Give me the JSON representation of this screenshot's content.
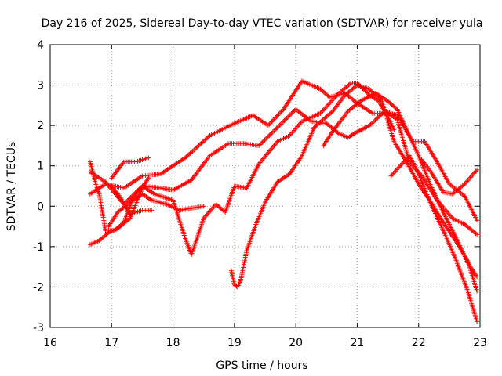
{
  "chart_data": {
    "type": "scatter",
    "title": "Day 216 of 2025, Sidereal Day-to-day VTEC variation (SDTVAR) for receiver yula",
    "xlabel": "GPS time / hours",
    "ylabel": "SDTVAR / TECUs",
    "xlim": [
      16,
      23
    ],
    "ylim": [
      -3,
      4
    ],
    "grid": true,
    "legend": "none",
    "x_ticks": [
      "16",
      "17",
      "18",
      "19",
      "20",
      "21",
      "22",
      "23"
    ],
    "y_ticks": [
      "-3",
      "-2",
      "-1",
      "0",
      "1",
      "2",
      "3",
      "4"
    ],
    "marker": "plus",
    "color": "#ff0000",
    "series": [
      {
        "name": "satellite-track-1",
        "x": [
          16.65,
          16.9,
          17.2,
          17.5,
          17.8,
          18.2,
          18.6,
          19.0,
          19.3,
          19.55,
          19.8,
          20.1,
          20.4,
          20.55,
          20.8,
          21.0,
          21.25,
          21.5,
          21.65,
          21.85,
          22.05,
          22.3,
          22.55,
          22.75,
          22.95
        ],
        "y": [
          0.3,
          0.55,
          0.45,
          0.75,
          0.8,
          1.2,
          1.75,
          2.05,
          2.25,
          2.0,
          2.4,
          3.1,
          2.9,
          2.7,
          2.8,
          2.55,
          2.3,
          2.3,
          2.15,
          1.1,
          0.75,
          0.15,
          -0.3,
          -0.45,
          -0.7
        ]
      },
      {
        "name": "satellite-track-2",
        "x": [
          16.65,
          16.9,
          17.2,
          17.5,
          17.8,
          18.0,
          18.3,
          18.6,
          18.9,
          19.15,
          19.4,
          19.7,
          20.0,
          20.25,
          20.5,
          20.7,
          20.85,
          20.95,
          21.2,
          21.45,
          21.65,
          21.75,
          21.9,
          22.1,
          22.3,
          22.5,
          22.75,
          22.95
        ],
        "y": [
          0.85,
          0.6,
          0.05,
          0.5,
          0.45,
          0.4,
          0.65,
          1.25,
          1.55,
          1.55,
          1.5,
          1.95,
          2.4,
          2.1,
          2.05,
          1.8,
          1.7,
          1.8,
          2.0,
          2.35,
          2.25,
          2.0,
          1.6,
          1.6,
          1.1,
          0.55,
          0.25,
          -0.35
        ]
      },
      {
        "name": "satellite-track-3",
        "x": [
          16.65,
          16.75,
          16.8,
          16.9,
          17.05,
          17.2,
          17.35,
          17.5,
          17.7,
          18.0,
          18.2,
          18.3,
          18.5,
          18.7,
          18.85,
          19.0,
          19.2,
          19.4,
          19.7,
          19.9,
          20.1,
          20.4,
          20.7,
          20.9,
          21.0,
          21.2,
          21.35,
          21.5,
          21.6
        ],
        "y": [
          1.1,
          0.5,
          0.3,
          -0.6,
          -0.6,
          -0.4,
          0.2,
          0.5,
          0.3,
          0.15,
          -0.8,
          -1.2,
          -0.3,
          0.05,
          -0.15,
          0.5,
          0.45,
          1.05,
          1.6,
          1.75,
          2.1,
          2.3,
          2.8,
          3.05,
          3.05,
          2.75,
          2.6,
          2.2,
          1.9
        ]
      },
      {
        "name": "satellite-track-4",
        "x": [
          16.65,
          16.8,
          16.95,
          17.1,
          17.3,
          17.5,
          17.6
        ],
        "y": [
          -0.95,
          -0.85,
          -0.65,
          -0.55,
          -0.3,
          0.45,
          0.7
        ]
      },
      {
        "name": "satellite-track-5",
        "x": [
          17.0,
          17.2,
          17.4,
          17.6
        ],
        "y": [
          0.7,
          1.1,
          1.1,
          1.2
        ]
      },
      {
        "name": "satellite-track-6",
        "x": [
          16.95,
          17.1,
          17.3,
          17.5,
          17.65,
          17.9,
          18.1,
          18.3,
          18.5
        ],
        "y": [
          -0.5,
          -0.15,
          0.1,
          0.3,
          0.15,
          0.05,
          -0.1,
          -0.05,
          0.0
        ]
      },
      {
        "name": "satellite-track-7",
        "x": [
          17.0,
          17.15,
          17.3,
          17.5,
          17.65
        ],
        "y": [
          0.5,
          0.2,
          -0.2,
          -0.1,
          -0.1
        ]
      },
      {
        "name": "satellite-track-8",
        "x": [
          18.95,
          19.0,
          19.05,
          19.1,
          19.2,
          19.35,
          19.5,
          19.7,
          19.9,
          20.1,
          20.3,
          20.6,
          20.8,
          21.0,
          21.2,
          21.4,
          21.6,
          21.8,
          22.0,
          22.2,
          22.4,
          22.6,
          22.8,
          22.95
        ],
        "y": [
          -1.6,
          -1.95,
          -2.0,
          -1.85,
          -1.1,
          -0.45,
          0.1,
          0.6,
          0.8,
          1.25,
          1.95,
          2.35,
          2.75,
          3.0,
          2.9,
          2.6,
          1.6,
          1.1,
          0.55,
          0.1,
          -0.4,
          -0.85,
          -1.35,
          -2.1
        ]
      },
      {
        "name": "satellite-track-9",
        "x": [
          20.45,
          20.6,
          20.85,
          21.05,
          21.3,
          21.5,
          21.65,
          21.85,
          22.0,
          22.2,
          22.4,
          22.6,
          22.8,
          22.95
        ],
        "y": [
          1.5,
          1.85,
          2.35,
          2.6,
          2.8,
          2.6,
          2.4,
          1.75,
          1.25,
          0.5,
          -0.15,
          -0.75,
          -1.4,
          -1.75
        ]
      },
      {
        "name": "satellite-track-10",
        "x": [
          21.55,
          21.7,
          21.85,
          22.0,
          22.2,
          22.4,
          22.6,
          22.8,
          22.95
        ],
        "y": [
          0.75,
          1.0,
          1.25,
          0.8,
          0.05,
          -0.6,
          -1.3,
          -2.1,
          -2.85
        ]
      },
      {
        "name": "satellite-track-11",
        "x": [
          22.05,
          22.2,
          22.4,
          22.55,
          22.75,
          22.95
        ],
        "y": [
          1.15,
          0.85,
          0.35,
          0.3,
          0.55,
          0.9
        ]
      }
    ]
  }
}
